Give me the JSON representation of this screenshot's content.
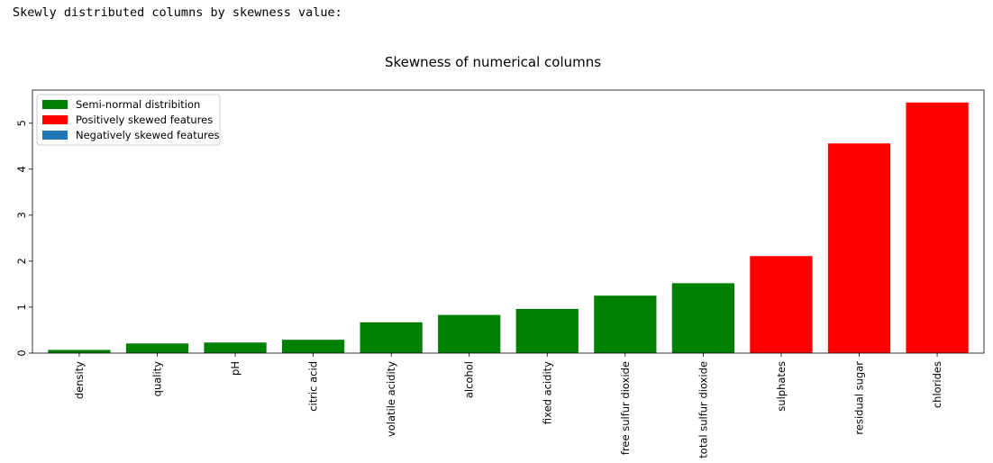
{
  "output_header": "Skewly distributed columns by skewness value:",
  "chart_data": {
    "type": "bar",
    "title": "Skewness of numerical columns",
    "xlabel": "",
    "ylabel": "",
    "categories": [
      "density",
      "quality",
      "pH",
      "citric acid",
      "volatile acidity",
      "alcohol",
      "fixed acidity",
      "free sulfur dioxide",
      "total sulfur dioxide",
      "sulphates",
      "residual sugar",
      "chlorides"
    ],
    "values": [
      0.07,
      0.21,
      0.23,
      0.29,
      0.67,
      0.83,
      0.96,
      1.25,
      1.52,
      2.11,
      4.56,
      5.45
    ],
    "bar_groups": [
      "Semi-normal distribition",
      "Semi-normal distribition",
      "Semi-normal distribition",
      "Semi-normal distribition",
      "Semi-normal distribition",
      "Semi-normal distribition",
      "Semi-normal distribition",
      "Semi-normal distribition",
      "Semi-normal distribition",
      "Positively skewed features",
      "Positively skewed features",
      "Positively skewed features"
    ],
    "legend": [
      {
        "label": "Semi-normal distribition",
        "color": "#008000"
      },
      {
        "label": "Positively skewed features",
        "color": "#ff0000"
      },
      {
        "label": "Negatively skewed features",
        "color": "#1f77b4"
      }
    ],
    "yticks": [
      0,
      1,
      2,
      3,
      4,
      5
    ],
    "ylim": [
      0,
      5.72
    ],
    "legend_position": "upper-left",
    "grid": false
  }
}
